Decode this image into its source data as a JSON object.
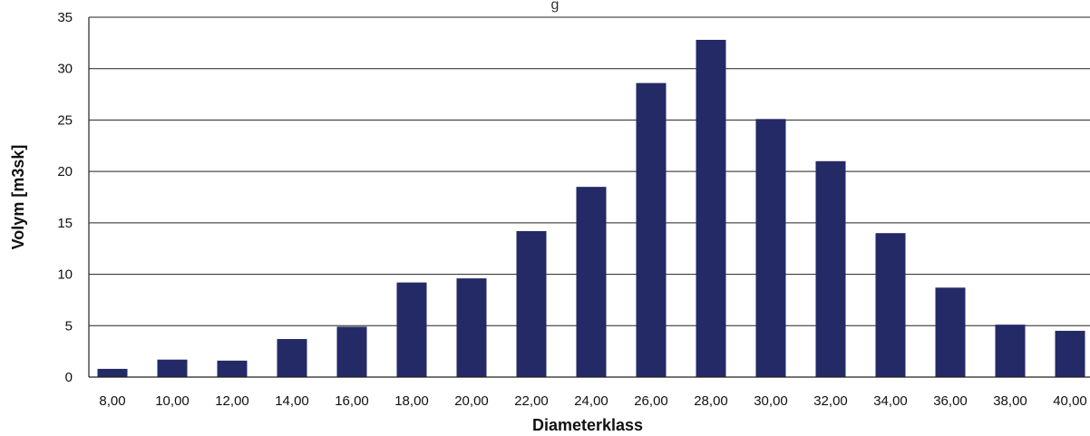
{
  "chart_data": {
    "type": "bar",
    "title": "g",
    "xlabel": "Diameterklass",
    "ylabel": "Volym [m3sk]",
    "categories": [
      "8,00",
      "10,00",
      "12,00",
      "14,00",
      "16,00",
      "18,00",
      "20,00",
      "22,00",
      "24,00",
      "26,00",
      "28,00",
      "30,00",
      "32,00",
      "34,00",
      "36,00",
      "38,00",
      "40,00"
    ],
    "values": [
      0.8,
      1.7,
      1.6,
      3.7,
      4.9,
      9.2,
      9.6,
      14.2,
      18.5,
      28.6,
      32.8,
      25.1,
      21.0,
      14.0,
      8.7,
      5.1,
      4.5
    ],
    "ylim": [
      0,
      35
    ],
    "yticks": [
      0,
      5,
      10,
      15,
      20,
      25,
      30,
      35
    ],
    "grid": true,
    "legend": "none",
    "colors": {
      "bar": "#232a66"
    }
  }
}
